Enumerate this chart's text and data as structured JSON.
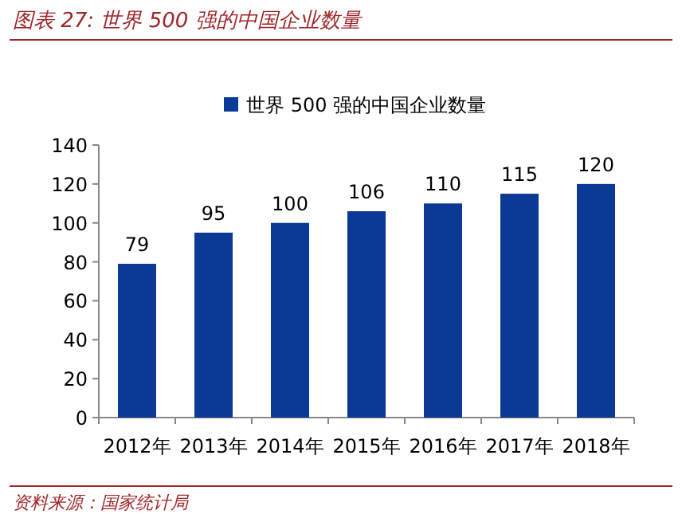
{
  "chart_data": {
    "type": "bar",
    "title": "图表 27: 世界 500 强的中国企业数量",
    "categories": [
      "2012年",
      "2013年",
      "2014年",
      "2015年",
      "2016年",
      "2017年",
      "2018年"
    ],
    "series": [
      {
        "name": "世界 500 强的中国企业数量",
        "color": "#0b3a96",
        "values": [
          79,
          95,
          100,
          106,
          110,
          115,
          120
        ]
      }
    ],
    "ylim": [
      0,
      140
    ],
    "yticks": [
      0,
      20,
      40,
      60,
      80,
      100,
      120,
      140
    ],
    "data_labels": true,
    "legend": "top",
    "grid": false,
    "annotations": [
      "资料来源：国家统计局"
    ]
  }
}
